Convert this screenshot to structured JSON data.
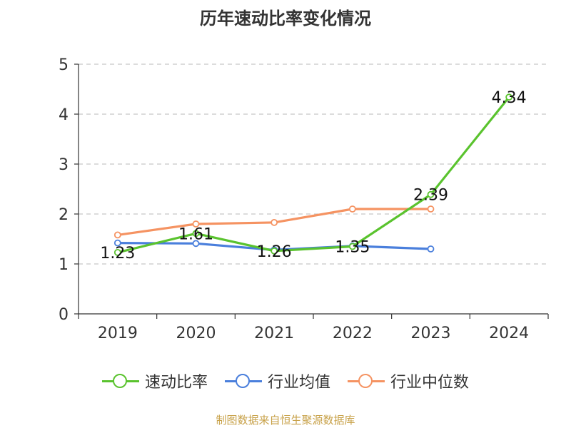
{
  "title": "历年速动比率变化情况",
  "source": "制图数据来自恒生聚源数据库",
  "chart_data": {
    "type": "line",
    "categories": [
      "2019",
      "2020",
      "2021",
      "2022",
      "2023",
      "2024"
    ],
    "ylim": [
      0,
      5
    ],
    "yticks": [
      0,
      1,
      2,
      3,
      4,
      5
    ],
    "grid": true,
    "legend_position": "bottom",
    "series": [
      {
        "name": "速动比率",
        "color": "#5ac32e",
        "values": [
          1.23,
          1.61,
          1.26,
          1.35,
          2.39,
          4.34
        ],
        "labels": [
          "1.23",
          "1.61",
          "1.26",
          "1.35",
          "2.39",
          "4.34"
        ]
      },
      {
        "name": "行业均值",
        "color": "#4a7fdc",
        "values": [
          1.42,
          1.41,
          1.28,
          1.36,
          1.3,
          null
        ]
      },
      {
        "name": "行业中位数",
        "color": "#f59362",
        "values": [
          1.58,
          1.8,
          1.83,
          2.1,
          2.1,
          null
        ]
      }
    ]
  }
}
